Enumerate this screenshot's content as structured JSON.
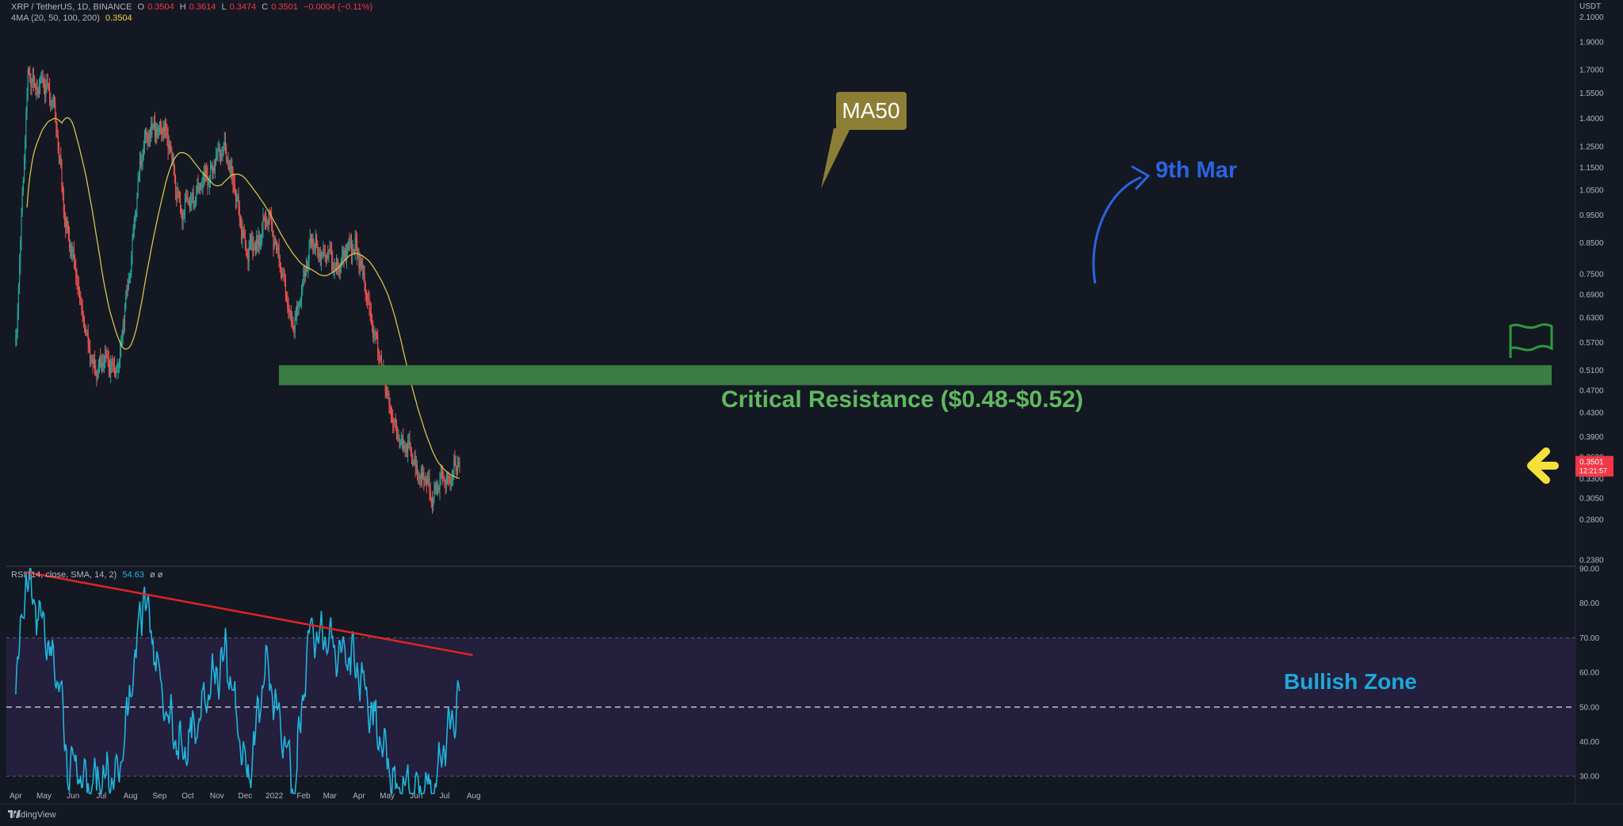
{
  "header": {
    "symbol": "XRP / TetherUS, 1D, BINANCE",
    "ohlc_o_label": "O",
    "ohlc_o": "0.3504",
    "ohlc_h_label": "H",
    "ohlc_h": "0.3614",
    "ohlc_l_label": "L",
    "ohlc_l": "0.3474",
    "ohlc_c_label": "C",
    "ohlc_c": "0.3501",
    "change": "−0.0004 (−0.11%)",
    "ma_label": "4MA (20, 50, 100, 200)",
    "ma_value": "0.3504",
    "rsi_label": "RSI (14, close, SMA, 14, 2)",
    "rsi_value": "54.63",
    "rsi_extra": "ø ø"
  },
  "price_axis": {
    "currency": "USDT",
    "ticks": [
      "2.1000",
      "1.9000",
      "1.7000",
      "1.5500",
      "1.4000",
      "1.2500",
      "1.1500",
      "1.0500",
      "0.9500",
      "0.8500",
      "0.7500",
      "0.6900",
      "0.6300",
      "0.5700",
      "0.5100",
      "0.4700",
      "0.4300",
      "0.3900",
      "0.3600",
      "0.3300",
      "0.3050",
      "0.2800",
      "0.2380"
    ],
    "current_price": "0.3501",
    "countdown": "12:21:57"
  },
  "rsi_axis": {
    "ticks": [
      "90.00",
      "80.00",
      "70.00",
      "60.00",
      "50.00",
      "40.00",
      "30.00"
    ]
  },
  "time_axis": {
    "labels": [
      "Apr",
      "May",
      "Jun",
      "Jul",
      "Aug",
      "Sep",
      "Oct",
      "Nov",
      "Dec",
      "2022",
      "Feb",
      "Mar",
      "Apr",
      "May",
      "Jun",
      "Jul",
      "Aug"
    ]
  },
  "annotations": {
    "ma50": "MA50",
    "ninth_mar": "9th Mar",
    "critical_resistance": "Critical Resistance ($0.48-$0.52)",
    "bullish_zone": "Bullish Zone"
  },
  "footer": {
    "brand": "TradingView"
  },
  "colors": {
    "background": "#141823",
    "up_candle": "#26a69a",
    "down_candle": "#ef5350",
    "ma50_line": "#d6c24a",
    "resistance_zone": "#3a7d44",
    "rsi_line": "#1fb5dc",
    "rsi_trendline": "#e02424",
    "rsi_band": "#231f3c",
    "arrow_blue": "#2a64e0",
    "arrow_yellow": "#f5e13a",
    "flag_green": "#2c9b3c"
  },
  "chart_data": [
    {
      "type": "candlestick",
      "title": "XRP / TetherUS, 1D, BINANCE",
      "y_scale": "log",
      "ylim": [
        0.238,
        2.1
      ],
      "x_range": [
        "2021-04",
        "2022-08"
      ],
      "waypoints_approx": [
        {
          "date": "2021-04-01",
          "price": 0.57
        },
        {
          "date": "2021-04-14",
          "price": 1.65
        },
        {
          "date": "2021-05-10",
          "price": 1.55
        },
        {
          "date": "2021-05-23",
          "price": 0.95
        },
        {
          "date": "2021-06-21",
          "price": 0.52
        },
        {
          "date": "2021-07-20",
          "price": 0.52
        },
        {
          "date": "2021-08-15",
          "price": 1.3
        },
        {
          "date": "2021-09-06",
          "price": 1.36
        },
        {
          "date": "2021-09-25",
          "price": 0.95
        },
        {
          "date": "2021-11-10",
          "price": 1.25
        },
        {
          "date": "2021-12-04",
          "price": 0.8
        },
        {
          "date": "2021-12-27",
          "price": 0.95
        },
        {
          "date": "2022-01-22",
          "price": 0.6
        },
        {
          "date": "2022-02-08",
          "price": 0.85
        },
        {
          "date": "2022-03-09",
          "price": 0.77
        },
        {
          "date": "2022-03-28",
          "price": 0.85
        },
        {
          "date": "2022-05-09",
          "price": 0.4
        },
        {
          "date": "2022-06-18",
          "price": 0.31
        },
        {
          "date": "2022-07-17",
          "price": 0.3501
        }
      ],
      "series": [
        {
          "name": "MA50",
          "note": "50-day moving average"
        }
      ],
      "zones": [
        {
          "label": "Critical Resistance ($0.48-$0.52)",
          "from": 0.48,
          "to": 0.52
        }
      ]
    },
    {
      "type": "line",
      "title": "RSI (14, close, SMA, 14, 2)",
      "ylim": [
        25,
        90
      ],
      "reference_lines": [
        70,
        50,
        30
      ],
      "current_value": 54.63,
      "trendline": {
        "from": {
          "date": "2021-04-12",
          "value": 89
        },
        "to": {
          "date": "2022-07-31",
          "value": 65
        }
      },
      "waypoints_approx": [
        {
          "date": "2021-04-01",
          "value": 55
        },
        {
          "date": "2021-04-12",
          "value": 88
        },
        {
          "date": "2021-05-18",
          "value": 57
        },
        {
          "date": "2021-05-25",
          "value": 34
        },
        {
          "date": "2021-06-21",
          "value": 28
        },
        {
          "date": "2021-07-20",
          "value": 30
        },
        {
          "date": "2021-08-16",
          "value": 84
        },
        {
          "date": "2021-09-05",
          "value": 52
        },
        {
          "date": "2021-09-25",
          "value": 36
        },
        {
          "date": "2021-11-10",
          "value": 66
        },
        {
          "date": "2021-12-04",
          "value": 28
        },
        {
          "date": "2021-12-23",
          "value": 64
        },
        {
          "date": "2022-01-22",
          "value": 26
        },
        {
          "date": "2022-02-08",
          "value": 73
        },
        {
          "date": "2022-03-28",
          "value": 63
        },
        {
          "date": "2022-05-12",
          "value": 26
        },
        {
          "date": "2022-06-18",
          "value": 26
        },
        {
          "date": "2022-07-17",
          "value": 54.63
        }
      ]
    }
  ]
}
